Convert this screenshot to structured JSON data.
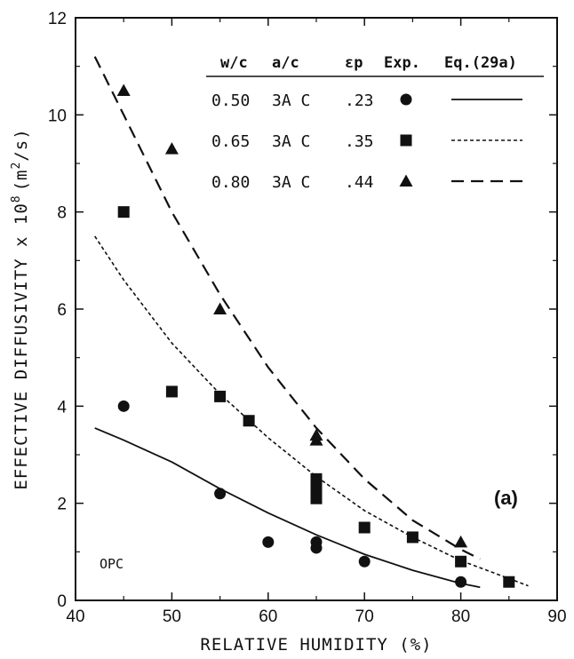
{
  "chart_data": {
    "type": "scatter",
    "title": "",
    "xlabel": "RELATIVE HUMIDITY (%)",
    "ylabel": "EFFECTIVE DIFFUSIVITY x 10",
    "ylabel_sup": "8",
    "ylabel_unit": "(m",
    "ylabel_unit_sup": "2",
    "ylabel_unit_end": "/s)",
    "xlim": [
      40,
      90
    ],
    "ylim": [
      0,
      12
    ],
    "xticks": [
      40,
      50,
      60,
      70,
      80,
      90
    ],
    "yticks": [
      0,
      2,
      4,
      6,
      8,
      10,
      12
    ],
    "grid": false,
    "legend_position": "top-right",
    "legend_header": [
      "w/c",
      "a/c",
      "εp",
      "Exp.",
      "Eq.(29a)"
    ],
    "panel_label": "(a)",
    "annotation": "OPC",
    "series": [
      {
        "name": "0.50 3A C .23",
        "wc": "0.50",
        "ac": "3A C",
        "ep": ".23",
        "marker": "circle",
        "line_style": "solid",
        "points": [
          [
            45,
            4.0
          ],
          [
            55,
            2.2
          ],
          [
            60,
            1.2
          ],
          [
            65,
            1.2
          ],
          [
            65,
            1.08
          ],
          [
            70,
            0.8
          ],
          [
            80,
            0.38
          ]
        ],
        "fit": [
          [
            42,
            3.55
          ],
          [
            45,
            3.3
          ],
          [
            50,
            2.85
          ],
          [
            55,
            2.3
          ],
          [
            60,
            1.8
          ],
          [
            65,
            1.35
          ],
          [
            70,
            0.95
          ],
          [
            75,
            0.62
          ],
          [
            80,
            0.35
          ],
          [
            82,
            0.27
          ]
        ]
      },
      {
        "name": "0.65 3A C .35",
        "wc": "0.65",
        "ac": "3A C",
        "ep": ".35",
        "marker": "square",
        "line_style": "dotted",
        "points": [
          [
            45,
            8.0
          ],
          [
            50,
            4.3
          ],
          [
            55,
            4.2
          ],
          [
            58,
            3.7
          ],
          [
            65,
            2.5
          ],
          [
            65,
            2.3
          ],
          [
            65,
            2.1
          ],
          [
            70,
            1.5
          ],
          [
            75,
            1.3
          ],
          [
            80,
            0.8
          ],
          [
            85,
            0.38
          ]
        ],
        "fit": [
          [
            42,
            7.5
          ],
          [
            45,
            6.6
          ],
          [
            50,
            5.3
          ],
          [
            55,
            4.25
          ],
          [
            60,
            3.35
          ],
          [
            65,
            2.55
          ],
          [
            70,
            1.85
          ],
          [
            75,
            1.3
          ],
          [
            80,
            0.82
          ],
          [
            85,
            0.45
          ],
          [
            87,
            0.3
          ]
        ]
      },
      {
        "name": "0.80 3A C .44",
        "wc": "0.80",
        "ac": "3A C",
        "ep": ".44",
        "marker": "triangle",
        "line_style": "dashed",
        "points": [
          [
            45,
            10.5
          ],
          [
            50,
            9.3
          ],
          [
            55,
            6.0
          ],
          [
            65,
            3.4
          ],
          [
            65,
            3.3
          ],
          [
            80,
            1.2
          ]
        ],
        "fit": [
          [
            42,
            11.2
          ],
          [
            45,
            10.0
          ],
          [
            50,
            8.0
          ],
          [
            55,
            6.3
          ],
          [
            60,
            4.8
          ],
          [
            65,
            3.55
          ],
          [
            70,
            2.5
          ],
          [
            75,
            1.65
          ],
          [
            80,
            1.05
          ],
          [
            82,
            0.85
          ]
        ]
      }
    ]
  }
}
